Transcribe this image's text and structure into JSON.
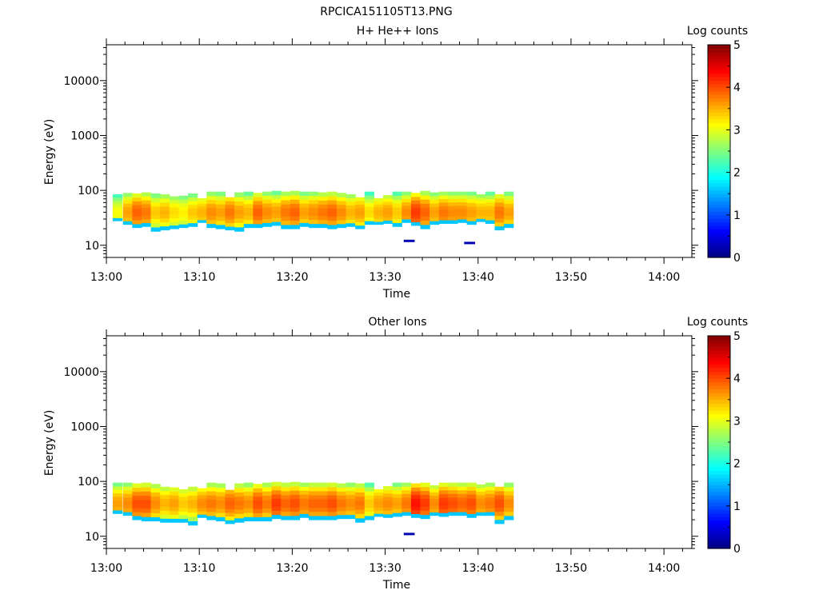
{
  "figure_title": "RPCICA151105T13.PNG",
  "chart_data": [
    {
      "type": "heatmap",
      "title": "H+ He++ Ions",
      "xlabel": "Time",
      "ylabel": "Energy (eV)",
      "x_ticks": [
        "13:00",
        "13:10",
        "13:20",
        "13:30",
        "13:40",
        "13:50",
        "14:00"
      ],
      "x_range_minutes": [
        0,
        63
      ],
      "y_ticks": [
        "10",
        "100",
        "1000",
        "10000"
      ],
      "y_range": [
        6,
        45000
      ],
      "y_scale": "log",
      "colorbar": {
        "label": "Log counts",
        "ticks": [
          "0",
          "1",
          "2",
          "3",
          "4",
          "5"
        ],
        "range": [
          0,
          5
        ],
        "colormap": "jet"
      },
      "data_time_range_minutes": [
        0.7,
        43.5
      ],
      "stripes": [
        {
          "t": 0.7,
          "lo": 28,
          "hi": 85,
          "peak": 3.1
        },
        {
          "t": 1.8,
          "lo": 24,
          "hi": 90,
          "peak": 3.6
        },
        {
          "t": 2.8,
          "lo": 21,
          "hi": 88,
          "peak": 3.9
        },
        {
          "t": 3.8,
          "lo": 22,
          "hi": 92,
          "peak": 3.8
        },
        {
          "t": 4.8,
          "lo": 18,
          "hi": 88,
          "peak": 3.4
        },
        {
          "t": 5.8,
          "lo": 19,
          "hi": 85,
          "peak": 3.5
        },
        {
          "t": 6.8,
          "lo": 20,
          "hi": 78,
          "peak": 3.3
        },
        {
          "t": 7.8,
          "lo": 21,
          "hi": 80,
          "peak": 3.2
        },
        {
          "t": 8.8,
          "lo": 22,
          "hi": 88,
          "peak": 3.4
        },
        {
          "t": 9.8,
          "lo": 26,
          "hi": 72,
          "peak": 3.5
        },
        {
          "t": 10.8,
          "lo": 21,
          "hi": 95,
          "peak": 3.7
        },
        {
          "t": 11.8,
          "lo": 20,
          "hi": 95,
          "peak": 3.6
        },
        {
          "t": 12.8,
          "lo": 19,
          "hi": 75,
          "peak": 3.8
        },
        {
          "t": 13.8,
          "lo": 18,
          "hi": 92,
          "peak": 3.6
        },
        {
          "t": 14.8,
          "lo": 21,
          "hi": 95,
          "peak": 3.5
        },
        {
          "t": 15.8,
          "lo": 21,
          "hi": 90,
          "peak": 3.9
        },
        {
          "t": 16.8,
          "lo": 22,
          "hi": 95,
          "peak": 3.7
        },
        {
          "t": 17.8,
          "lo": 23,
          "hi": 98,
          "peak": 3.6
        },
        {
          "t": 18.8,
          "lo": 20,
          "hi": 95,
          "peak": 3.8
        },
        {
          "t": 19.8,
          "lo": 20,
          "hi": 98,
          "peak": 3.9
        },
        {
          "t": 20.8,
          "lo": 22,
          "hi": 95,
          "peak": 3.6
        },
        {
          "t": 21.8,
          "lo": 21,
          "hi": 95,
          "peak": 3.7
        },
        {
          "t": 22.8,
          "lo": 21,
          "hi": 92,
          "peak": 3.8
        },
        {
          "t": 23.8,
          "lo": 20,
          "hi": 95,
          "peak": 3.9
        },
        {
          "t": 24.8,
          "lo": 21,
          "hi": 90,
          "peak": 3.7
        },
        {
          "t": 25.8,
          "lo": 22,
          "hi": 85,
          "peak": 3.5
        },
        {
          "t": 26.8,
          "lo": 20,
          "hi": 75,
          "peak": 3.6
        },
        {
          "t": 27.8,
          "lo": 24,
          "hi": 95,
          "peak": 3.3
        },
        {
          "t": 28.8,
          "lo": 24,
          "hi": 72,
          "peak": 3.5
        },
        {
          "t": 29.8,
          "lo": 25,
          "hi": 82,
          "peak": 3.6
        },
        {
          "t": 30.8,
          "lo": 22,
          "hi": 95,
          "peak": 3.4
        },
        {
          "t": 31.8,
          "lo": 26,
          "hi": 95,
          "peak": 3.7
        },
        {
          "t": 32.8,
          "lo": 23,
          "hi": 90,
          "peak": 4.1
        },
        {
          "t": 33.8,
          "lo": 20,
          "hi": 98,
          "peak": 3.9
        },
        {
          "t": 34.8,
          "lo": 24,
          "hi": 92,
          "peak": 3.6
        },
        {
          "t": 35.8,
          "lo": 25,
          "hi": 95,
          "peak": 3.8
        },
        {
          "t": 36.8,
          "lo": 25,
          "hi": 95,
          "peak": 3.7
        },
        {
          "t": 37.8,
          "lo": 26,
          "hi": 95,
          "peak": 3.7
        },
        {
          "t": 38.8,
          "lo": 24,
          "hi": 95,
          "peak": 3.6
        },
        {
          "t": 39.8,
          "lo": 27,
          "hi": 85,
          "peak": 3.5
        },
        {
          "t": 40.8,
          "lo": 25,
          "hi": 95,
          "peak": 3.5
        },
        {
          "t": 41.8,
          "lo": 19,
          "hi": 85,
          "peak": 3.8
        },
        {
          "t": 42.8,
          "lo": 21,
          "hi": 95,
          "peak": 3.6
        }
      ],
      "isolated_points": [
        {
          "t": 32.0,
          "e": 12
        },
        {
          "t": 38.5,
          "e": 11
        }
      ]
    },
    {
      "type": "heatmap",
      "title": "Other Ions",
      "xlabel": "Time",
      "ylabel": "Energy (eV)",
      "x_ticks": [
        "13:00",
        "13:10",
        "13:20",
        "13:30",
        "13:40",
        "13:50",
        "14:00"
      ],
      "x_range_minutes": [
        0,
        63
      ],
      "y_ticks": [
        "10",
        "100",
        "1000",
        "10000"
      ],
      "y_range": [
        6,
        45000
      ],
      "y_scale": "log",
      "colorbar": {
        "label": "Log counts",
        "ticks": [
          "0",
          "1",
          "2",
          "3",
          "4",
          "5"
        ],
        "range": [
          0,
          5
        ],
        "colormap": "jet"
      },
      "data_time_range_minutes": [
        0.7,
        43.5
      ],
      "stripes": [
        {
          "t": 0.7,
          "lo": 26,
          "hi": 95,
          "peak": 3.6
        },
        {
          "t": 1.8,
          "lo": 24,
          "hi": 95,
          "peak": 3.7
        },
        {
          "t": 2.8,
          "lo": 20,
          "hi": 92,
          "peak": 4.0
        },
        {
          "t": 3.8,
          "lo": 19,
          "hi": 95,
          "peak": 4.0
        },
        {
          "t": 4.8,
          "lo": 19,
          "hi": 90,
          "peak": 3.7
        },
        {
          "t": 5.8,
          "lo": 18,
          "hi": 80,
          "peak": 3.5
        },
        {
          "t": 6.8,
          "lo": 18,
          "hi": 78,
          "peak": 3.6
        },
        {
          "t": 7.8,
          "lo": 18,
          "hi": 72,
          "peak": 3.4
        },
        {
          "t": 8.8,
          "lo": 16,
          "hi": 80,
          "peak": 3.5
        },
        {
          "t": 9.8,
          "lo": 22,
          "hi": 75,
          "peak": 3.7
        },
        {
          "t": 10.8,
          "lo": 20,
          "hi": 95,
          "peak": 3.8
        },
        {
          "t": 11.8,
          "lo": 19,
          "hi": 92,
          "peak": 3.7
        },
        {
          "t": 12.8,
          "lo": 17,
          "hi": 70,
          "peak": 3.9
        },
        {
          "t": 13.8,
          "lo": 18,
          "hi": 92,
          "peak": 3.8
        },
        {
          "t": 14.8,
          "lo": 19,
          "hi": 95,
          "peak": 3.7
        },
        {
          "t": 15.8,
          "lo": 19,
          "hi": 90,
          "peak": 4.0
        },
        {
          "t": 16.8,
          "lo": 19,
          "hi": 95,
          "peak": 3.8
        },
        {
          "t": 17.8,
          "lo": 21,
          "hi": 98,
          "peak": 4.1
        },
        {
          "t": 18.8,
          "lo": 20,
          "hi": 95,
          "peak": 3.9
        },
        {
          "t": 19.8,
          "lo": 20,
          "hi": 98,
          "peak": 4.0
        },
        {
          "t": 20.8,
          "lo": 22,
          "hi": 95,
          "peak": 3.8
        },
        {
          "t": 21.8,
          "lo": 20,
          "hi": 95,
          "peak": 3.9
        },
        {
          "t": 22.8,
          "lo": 20,
          "hi": 95,
          "peak": 3.9
        },
        {
          "t": 23.8,
          "lo": 20,
          "hi": 95,
          "peak": 4.0
        },
        {
          "t": 24.8,
          "lo": 21,
          "hi": 92,
          "peak": 3.8
        },
        {
          "t": 25.8,
          "lo": 21,
          "hi": 95,
          "peak": 3.7
        },
        {
          "t": 26.8,
          "lo": 18,
          "hi": 92,
          "peak": 3.8
        },
        {
          "t": 27.8,
          "lo": 20,
          "hi": 95,
          "peak": 3.4
        },
        {
          "t": 28.8,
          "lo": 23,
          "hi": 72,
          "peak": 3.6
        },
        {
          "t": 29.8,
          "lo": 22,
          "hi": 82,
          "peak": 3.7
        },
        {
          "t": 30.8,
          "lo": 23,
          "hi": 95,
          "peak": 3.6
        },
        {
          "t": 31.8,
          "lo": 24,
          "hi": 95,
          "peak": 3.8
        },
        {
          "t": 32.8,
          "lo": 22,
          "hi": 92,
          "peak": 4.3
        },
        {
          "t": 33.8,
          "lo": 21,
          "hi": 95,
          "peak": 4.1
        },
        {
          "t": 34.8,
          "lo": 24,
          "hi": 85,
          "peak": 3.7
        },
        {
          "t": 35.8,
          "lo": 23,
          "hi": 95,
          "peak": 4.1
        },
        {
          "t": 36.8,
          "lo": 24,
          "hi": 95,
          "peak": 4.0
        },
        {
          "t": 37.8,
          "lo": 24,
          "hi": 95,
          "peak": 3.9
        },
        {
          "t": 38.8,
          "lo": 22,
          "hi": 95,
          "peak": 4.0
        },
        {
          "t": 39.8,
          "lo": 24,
          "hi": 88,
          "peak": 3.7
        },
        {
          "t": 40.8,
          "lo": 24,
          "hi": 95,
          "peak": 3.8
        },
        {
          "t": 41.8,
          "lo": 17,
          "hi": 80,
          "peak": 4.0
        },
        {
          "t": 42.8,
          "lo": 20,
          "hi": 95,
          "peak": 3.7
        }
      ],
      "isolated_points": [
        {
          "t": 32.0,
          "e": 11
        }
      ]
    }
  ]
}
